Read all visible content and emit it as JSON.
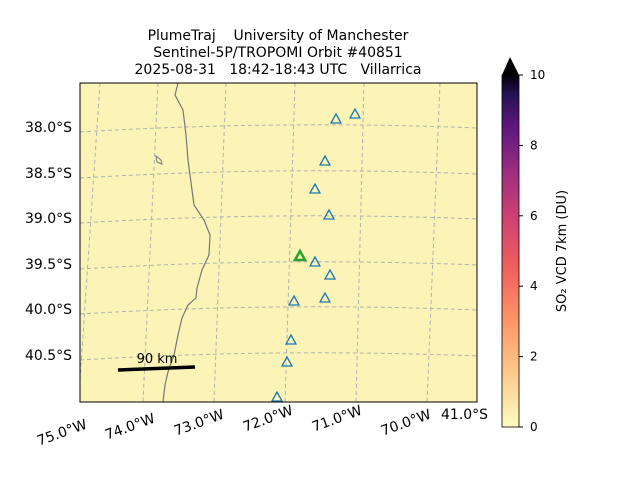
{
  "title": {
    "line1": "PlumeTraj    University of Manchester",
    "line2": "Sentinel-5P/TROPOMI Orbit #40851",
    "line3": "2025-08-31   18:42-18:43 UTC   Villarrica"
  },
  "latitude_labels": [
    "38.0°S",
    "38.5°S",
    "39.0°S",
    "39.5°S",
    "40.0°S",
    "40.5°S",
    "41.0°S"
  ],
  "longitude_labels": [
    "75.0°W",
    "74.0°W",
    "73.0°W",
    "72.0°W",
    "71.0°W",
    "70.0°W"
  ],
  "scale_bar": "90 km",
  "colorbar": {
    "label": "SO₂ VCD 7km (DU)",
    "lim": [
      0,
      10
    ],
    "ticks": [
      0,
      2,
      4,
      6,
      8,
      10
    ]
  }
}
